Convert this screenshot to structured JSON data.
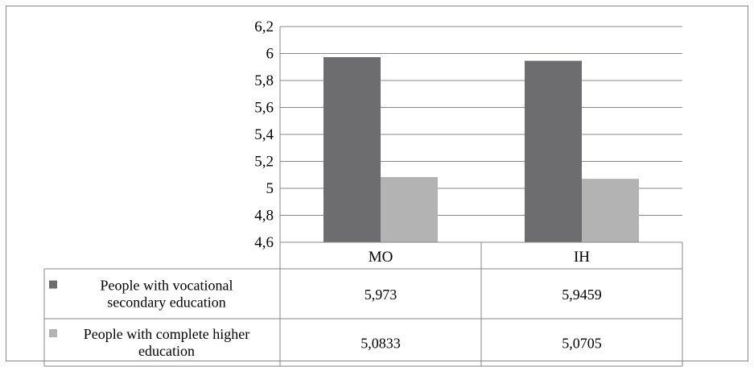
{
  "chart_data": {
    "type": "bar",
    "categories": [
      "MO",
      "IH"
    ],
    "series": [
      {
        "name": "People with vocational secondary education",
        "name_lines": [
          "People with vocational",
          "secondary education"
        ],
        "values": [
          5.973,
          5.9459
        ],
        "value_labels": [
          "5,973",
          "5,9459"
        ],
        "color": "#6d6d6f"
      },
      {
        "name": "People with complete higher education",
        "name_lines": [
          "People with complete higher",
          "education"
        ],
        "values": [
          5.0833,
          5.0705
        ],
        "value_labels": [
          "5,0833",
          "5,0705"
        ],
        "color": "#b3b3b3"
      }
    ],
    "ylim": [
      4.6,
      6.2
    ],
    "yticks": [
      4.6,
      4.8,
      5,
      5.2,
      5.4,
      5.6,
      5.8,
      6,
      6.2
    ],
    "ytick_labels": [
      "4,6",
      "4,8",
      "5",
      "5,2",
      "5,4",
      "5,6",
      "5,8",
      "6",
      "6,2"
    ],
    "grid": true,
    "data_table": true
  }
}
